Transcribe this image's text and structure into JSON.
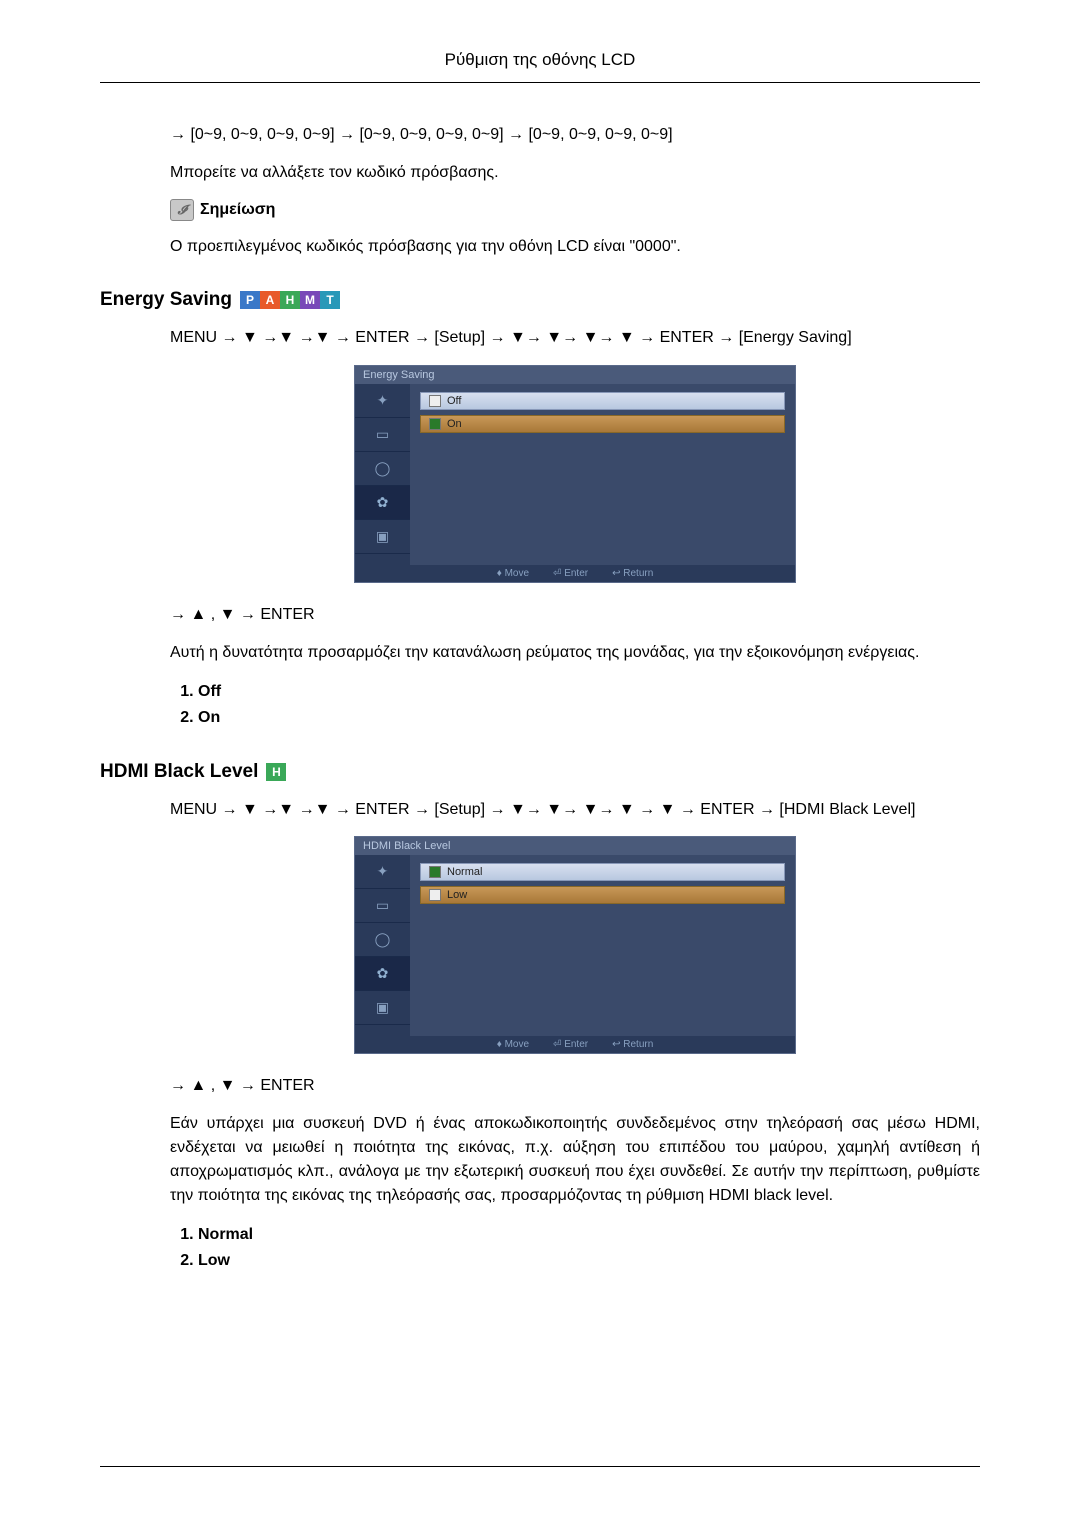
{
  "header": {
    "title": "Ρύθμιση της οθόνης LCD"
  },
  "intro": {
    "line1": "→ [0~9, 0~9, 0~9, 0~9] → [0~9, 0~9, 0~9, 0~9] → [0~9, 0~9, 0~9, 0~9]",
    "line2": "Μπορείτε να αλλάξετε τον κωδικό πρόσβασης.",
    "note_label": "Σημείωση",
    "note_body": "Ο προεπιλεγμένος κωδικός πρόσβασης για την οθόνη LCD είναι \"0000\"."
  },
  "badges": {
    "P": "#3a78c8",
    "A": "#e85a2a",
    "H": "#3aa858",
    "M": "#7848b8",
    "T": "#2898b8"
  },
  "energy": {
    "title": "Energy Saving",
    "badges": [
      "P",
      "A",
      "H",
      "M",
      "T"
    ],
    "nav": "MENU → ▼ →▼ →▼ → ENTER → [Setup] → ▼→ ▼→ ▼→ ▼ → ENTER → [Energy Saving]",
    "osd": {
      "title": "Energy Saving",
      "options": [
        {
          "label": "Off",
          "checked": false,
          "selected": false
        },
        {
          "label": "On",
          "checked": true,
          "selected": true
        }
      ],
      "footer": {
        "move": "♦ Move",
        "enter": "⏎ Enter",
        "ret": "↩ Return"
      }
    },
    "after_nav": "→ ▲ , ▼ → ENTER",
    "desc": "Αυτή η δυνατότητα προσαρμόζει την κατανάλωση ρεύματος της μονάδας, για την εξοικονόμηση ενέργειας.",
    "list": [
      "Off",
      "On"
    ]
  },
  "hdmi": {
    "title": "HDMI Black Level",
    "badges": [
      "H"
    ],
    "nav": "MENU → ▼ →▼ →▼ → ENTER → [Setup] → ▼→ ▼→ ▼→ ▼ → ▼ → ENTER → [HDMI Black Level]",
    "osd": {
      "title": "HDMI Black Level",
      "options": [
        {
          "label": "Normal",
          "checked": true,
          "selected": false
        },
        {
          "label": "Low",
          "checked": false,
          "selected": true
        }
      ],
      "footer": {
        "move": "♦ Move",
        "enter": "⏎ Enter",
        "ret": "↩ Return"
      }
    },
    "after_nav": "→ ▲ , ▼ → ENTER",
    "desc": "Εάν υπάρχει μια συσκευή DVD ή ένας αποκωδικοποιητής συνδεδεμένος στην τηλεόρασή σας μέσω HDMI, ενδέχεται να μειωθεί η ποιότητα της εικόνας, π.χ. αύξηση του επιπέδου του μαύρου, χαμηλή αντίθεση ή αποχρωματισμός κλπ., ανάλογα με την εξωτερική συσκευή που έχει συνδεθεί. Σε αυτήν την περίπτωση, ρυθμίστε την ποιότητα της εικόνας της τηλεόρασής σας, προσαρμόζοντας τη ρύθμιση HDMI black level.",
    "list": [
      "Normal",
      "Low"
    ]
  },
  "osd_icons": [
    "✦",
    "▭",
    "◯",
    "✿",
    "▣"
  ]
}
